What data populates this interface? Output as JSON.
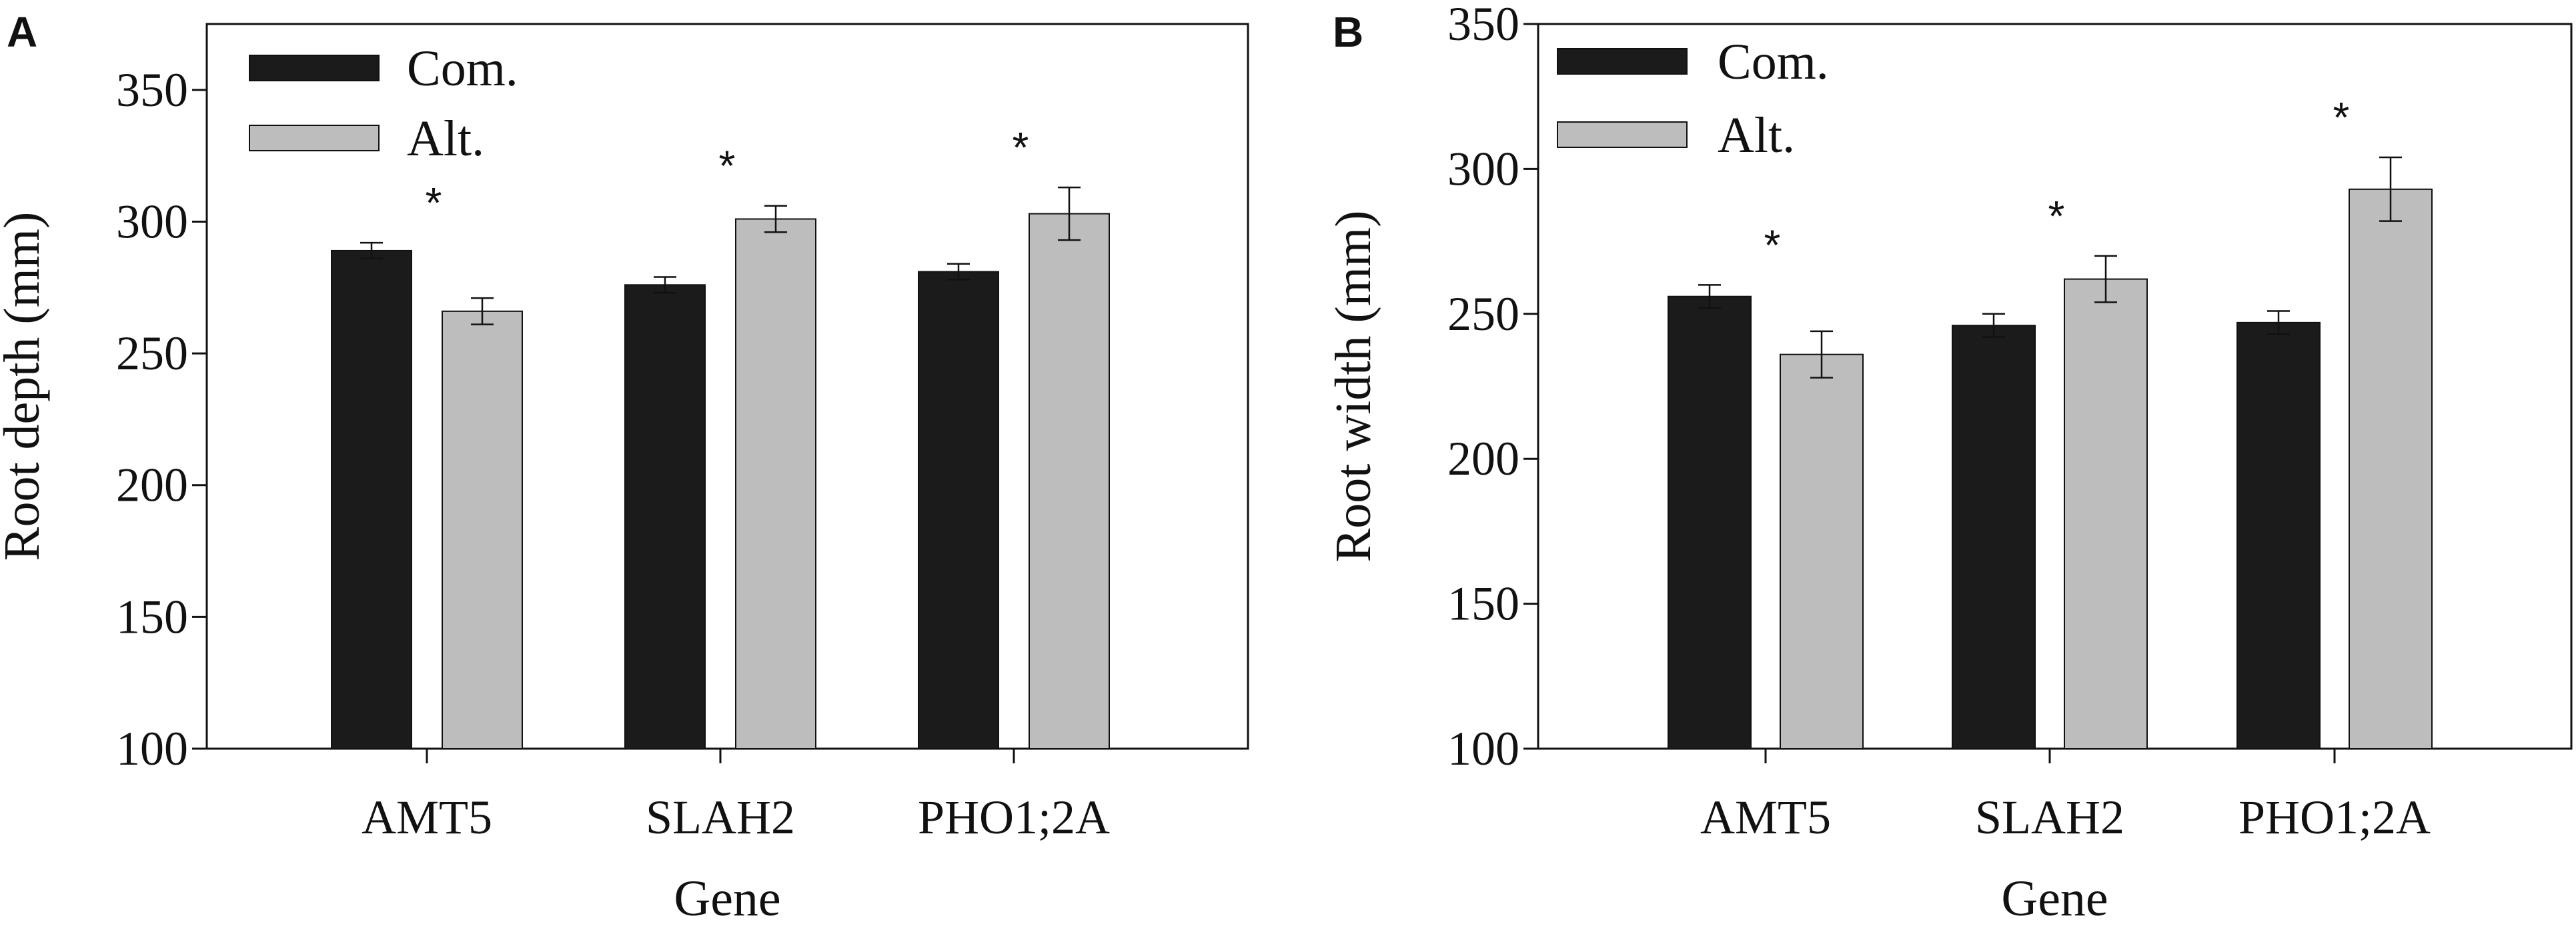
{
  "colors": {
    "common": "#1b1b1b",
    "alternative": "#bdbdbd",
    "axis": "#111111"
  },
  "chart_data": [
    {
      "type": "bar",
      "panel": "A",
      "ylabel": "Root depth (mm)",
      "xlabel": "Gene",
      "ylim": [
        100,
        375
      ],
      "yticks": [
        100,
        150,
        200,
        250,
        300,
        350
      ],
      "categories": [
        "AMT5",
        "SLAH2",
        "PHO1;2A"
      ],
      "series": [
        {
          "name": "Com.",
          "values": [
            289,
            276,
            281
          ],
          "errors": [
            3,
            3,
            3
          ]
        },
        {
          "name": "Alt.",
          "values": [
            266,
            301,
            303
          ],
          "errors": [
            5,
            5,
            10
          ]
        }
      ],
      "significance": [
        "*",
        "*",
        "*"
      ],
      "legend": "top-left"
    },
    {
      "type": "bar",
      "panel": "B",
      "ylabel": "Root width (mm)",
      "xlabel": "Gene",
      "ylim": [
        100,
        350
      ],
      "yticks": [
        100,
        150,
        200,
        250,
        300,
        350
      ],
      "categories": [
        "AMT5",
        "SLAH2",
        "PHO1;2A"
      ],
      "series": [
        {
          "name": "Com.",
          "values": [
            256,
            246,
            247
          ],
          "errors": [
            4,
            4,
            4
          ]
        },
        {
          "name": "Alt.",
          "values": [
            236,
            262,
            293
          ],
          "errors": [
            8,
            8,
            11
          ]
        }
      ],
      "significance": [
        "*",
        "*",
        "*"
      ],
      "legend": "top-left"
    }
  ]
}
